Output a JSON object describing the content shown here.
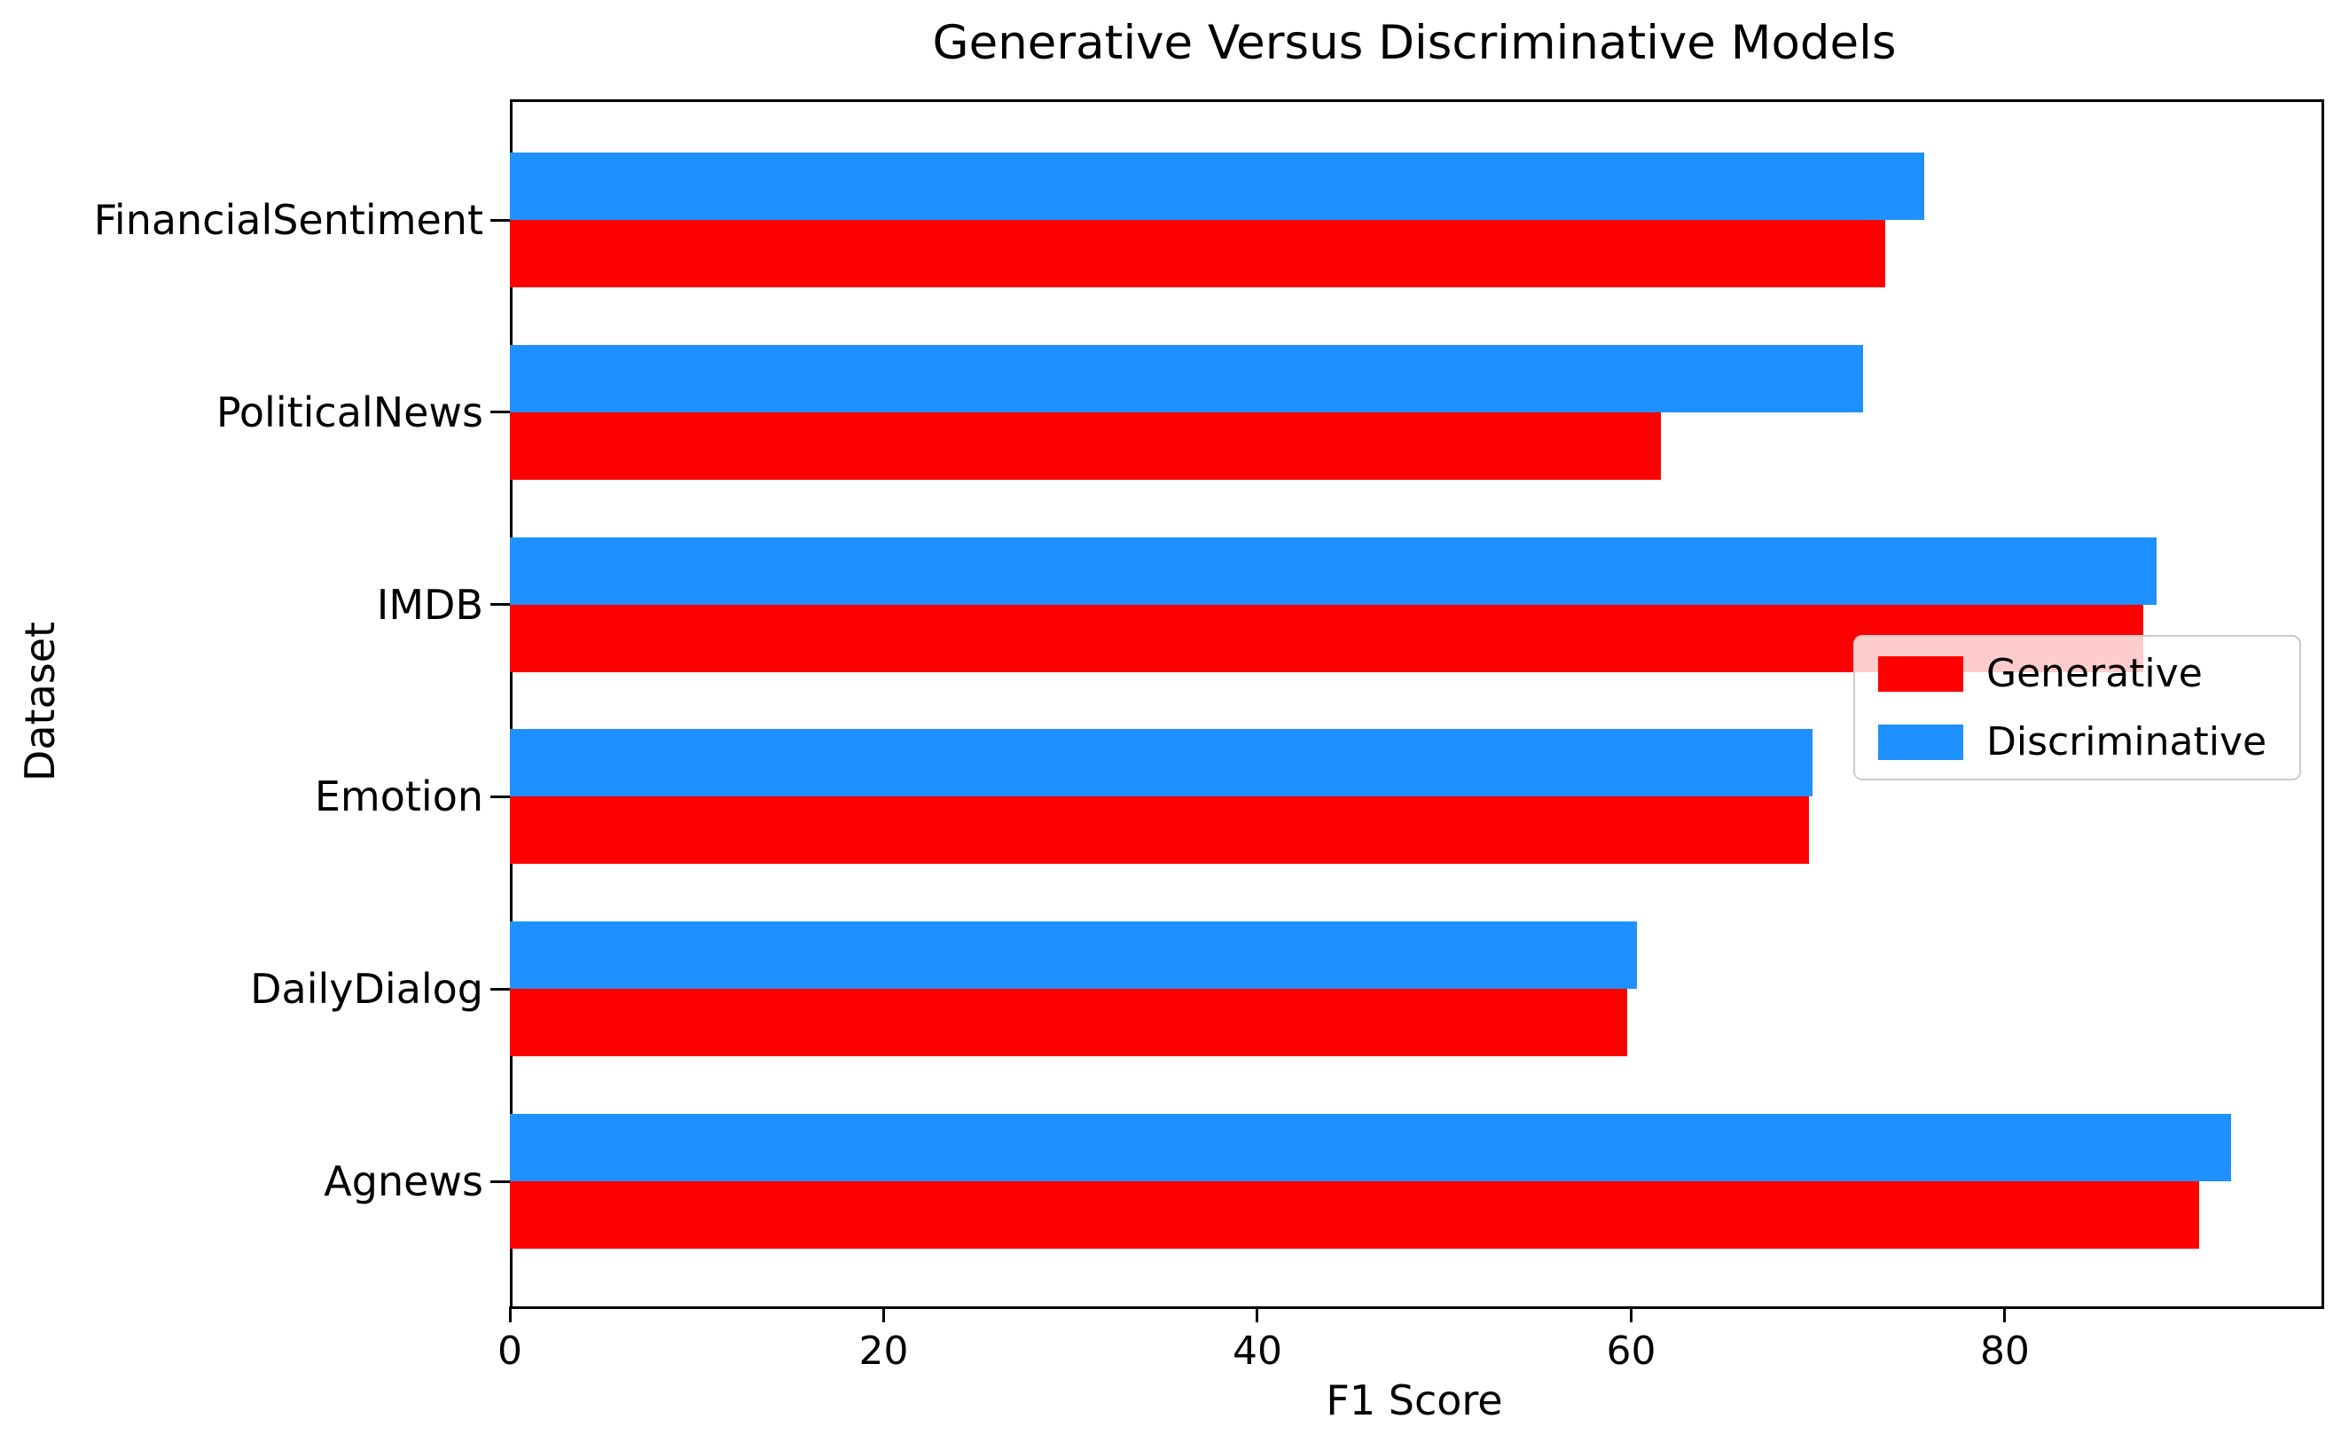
{
  "title": "Generative Versus Discriminative Models",
  "axis": {
    "x_label": "F1 Score",
    "y_label": "Dataset",
    "x_ticks": [
      0,
      20,
      40,
      60,
      80
    ]
  },
  "chart_data": {
    "type": "bar",
    "orientation": "horizontal",
    "title": "Generative Versus Discriminative Models",
    "xlabel": "F1 Score",
    "ylabel": "Dataset",
    "xlim": [
      0,
      96.8
    ],
    "grid": false,
    "legend_position": "center right",
    "categories_top_to_bottom": [
      "FinancialSentiment",
      "PoliticalNews",
      "IMDB",
      "Emotion",
      "DailyDialog",
      "Agnews"
    ],
    "series": [
      {
        "name": "Generative",
        "color": "#ff0000",
        "values_top_to_bottom": [
          73.6,
          61.6,
          87.4,
          69.5,
          59.8,
          90.4
        ]
      },
      {
        "name": "Discriminative",
        "color": "#1e90ff",
        "values_top_to_bottom": [
          75.7,
          72.4,
          88.1,
          69.7,
          60.3,
          92.1
        ]
      }
    ],
    "note_bar_order_within_group": "Discriminative (blue) bar drawn above Generative (red) bar in each category group"
  },
  "colors": {
    "generative_red": "#ff0000",
    "discriminative_blue": "#1e90ff",
    "spine_black": "#000000",
    "legend_border_gray": "#cccccc",
    "background_white": "#ffffff"
  }
}
